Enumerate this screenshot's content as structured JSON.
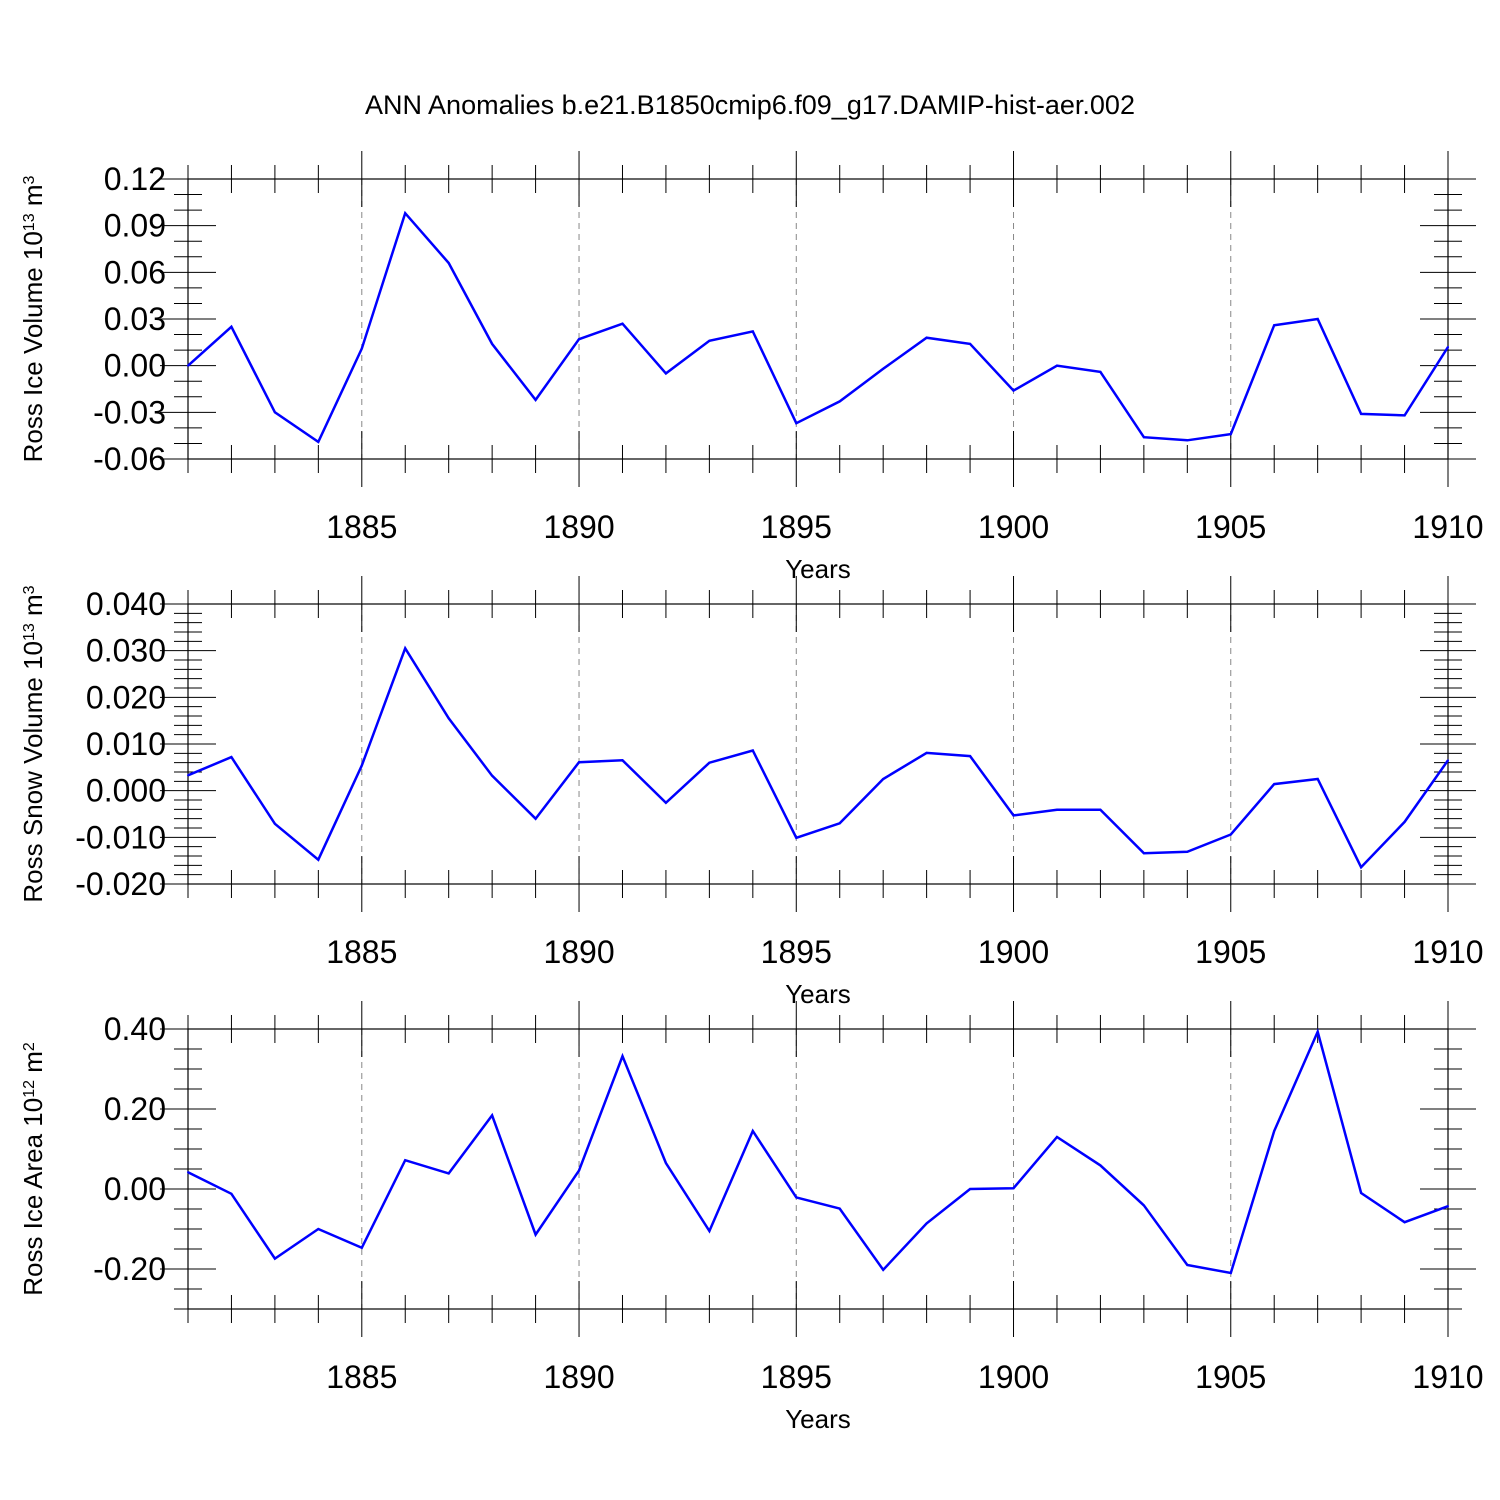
{
  "figure": {
    "title": "ANN Anomalies b.e21.B1850cmip6.f09_g17.DAMIP-hist-aer.002",
    "line_color": "#0000ff",
    "axis_color": "#000000",
    "grid_color": "#888888"
  },
  "chart_data": [
    {
      "type": "line",
      "ylabel_parts": [
        "Ross Ice Volume 10",
        "13",
        " m",
        "3"
      ],
      "xlabel": "Years",
      "xlim": [
        1881,
        1910
      ],
      "ylim": [
        -0.06,
        0.12
      ],
      "x_ticks": [
        1885,
        1890,
        1895,
        1900,
        1905,
        1910
      ],
      "x_tick_labels": [
        "1885",
        "1890",
        "1895",
        "1900",
        "1905",
        "1910"
      ],
      "y_ticks": [
        -0.06,
        -0.03,
        0.0,
        0.03,
        0.06,
        0.09,
        0.12
      ],
      "y_tick_labels": [
        "-0.06",
        "-0.03",
        "0.00",
        "0.03",
        "0.06",
        "0.09",
        "0.12"
      ],
      "y_minor_step": 0.01,
      "grid": "vertical dashed at major x ticks",
      "x": [
        1881,
        1882,
        1883,
        1884,
        1885,
        1886,
        1887,
        1888,
        1889,
        1890,
        1891,
        1892,
        1893,
        1894,
        1895,
        1896,
        1897,
        1898,
        1899,
        1900,
        1901,
        1902,
        1903,
        1904,
        1905,
        1906,
        1907,
        1908,
        1909,
        1910
      ],
      "values": [
        0.0,
        0.025,
        -0.03,
        -0.049,
        0.011,
        0.098,
        0.066,
        0.014,
        -0.022,
        0.017,
        0.027,
        -0.005,
        0.016,
        0.022,
        -0.037,
        -0.023,
        -0.002,
        0.018,
        0.014,
        -0.016,
        0.0,
        -0.004,
        -0.046,
        -0.048,
        -0.044,
        0.026,
        0.03,
        -0.031,
        -0.032,
        0.012
      ]
    },
    {
      "type": "line",
      "ylabel_parts": [
        "Ross Snow Volume 10",
        "13",
        " m",
        "3"
      ],
      "xlabel": "Years",
      "xlim": [
        1881,
        1910
      ],
      "ylim": [
        -0.02,
        0.04
      ],
      "x_ticks": [
        1885,
        1890,
        1895,
        1900,
        1905,
        1910
      ],
      "x_tick_labels": [
        "1885",
        "1890",
        "1895",
        "1900",
        "1905",
        "1910"
      ],
      "y_ticks": [
        -0.02,
        -0.01,
        0.0,
        0.01,
        0.02,
        0.03,
        0.04
      ],
      "y_tick_labels": [
        "-0.020",
        "-0.010",
        "0.000",
        "0.010",
        "0.020",
        "0.030",
        "0.040"
      ],
      "y_minor_step": 0.002,
      "grid": "vertical dashed at major x ticks",
      "x": [
        1881,
        1882,
        1883,
        1884,
        1885,
        1886,
        1887,
        1888,
        1889,
        1890,
        1891,
        1892,
        1893,
        1894,
        1895,
        1896,
        1897,
        1898,
        1899,
        1900,
        1901,
        1902,
        1903,
        1904,
        1905,
        1906,
        1907,
        1908,
        1909,
        1910
      ],
      "values": [
        0.0033,
        0.0072,
        -0.0071,
        -0.0148,
        0.0054,
        0.0305,
        0.0155,
        0.0032,
        -0.006,
        0.0061,
        0.0065,
        -0.0026,
        0.006,
        0.0086,
        -0.0101,
        -0.007,
        0.0025,
        0.0081,
        0.0074,
        -0.0053,
        -0.0041,
        -0.0041,
        -0.0134,
        -0.0131,
        -0.0094,
        0.0014,
        0.0025,
        -0.0164,
        -0.0067,
        0.0065
      ]
    },
    {
      "type": "line",
      "ylabel_parts": [
        "Ross Ice Area 10",
        "12",
        " m",
        "2"
      ],
      "xlabel": "Years",
      "xlim": [
        1881,
        1910
      ],
      "ylim": [
        -0.3,
        0.4
      ],
      "x_ticks": [
        1885,
        1890,
        1895,
        1900,
        1905,
        1910
      ],
      "x_tick_labels": [
        "1885",
        "1890",
        "1895",
        "1900",
        "1905",
        "1910"
      ],
      "y_ticks": [
        -0.2,
        0.0,
        0.2,
        0.4
      ],
      "y_tick_labels": [
        "-0.20",
        "0.00",
        "0.20",
        "0.40"
      ],
      "y_minor_step": 0.05,
      "grid": "vertical dashed at major x ticks",
      "x": [
        1881,
        1882,
        1883,
        1884,
        1885,
        1886,
        1887,
        1888,
        1889,
        1890,
        1891,
        1892,
        1893,
        1894,
        1895,
        1896,
        1897,
        1898,
        1899,
        1900,
        1901,
        1902,
        1903,
        1904,
        1905,
        1906,
        1907,
        1908,
        1909,
        1910
      ],
      "values": [
        0.042,
        -0.012,
        -0.174,
        -0.1,
        -0.147,
        0.072,
        0.039,
        0.184,
        -0.114,
        0.046,
        0.332,
        0.065,
        -0.105,
        0.145,
        -0.021,
        -0.049,
        -0.202,
        -0.086,
        0.0,
        0.002,
        0.13,
        0.059,
        -0.041,
        -0.19,
        -0.21,
        0.145,
        0.393,
        -0.01,
        -0.083,
        -0.043
      ]
    }
  ]
}
